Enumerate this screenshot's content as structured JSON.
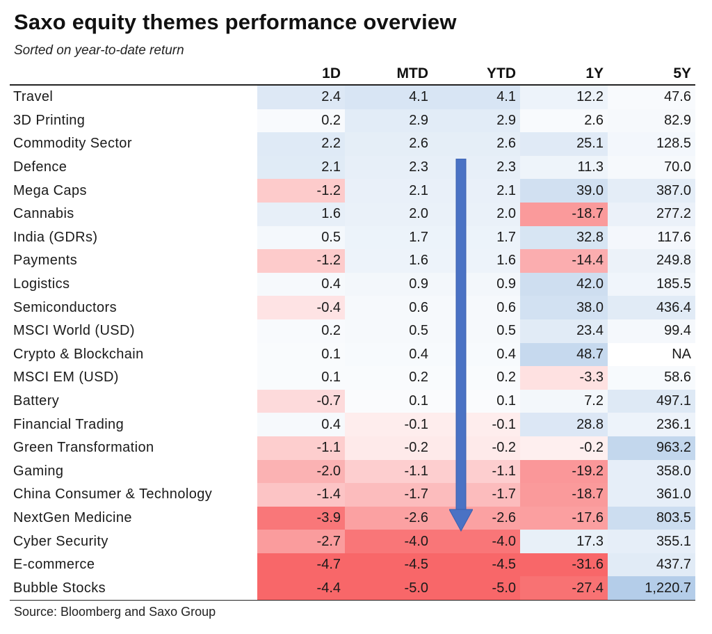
{
  "chart_data": {
    "type": "table",
    "title": "Saxo equity themes performance overview",
    "subtitle": "Sorted on year-to-date return",
    "source": "Source: Bloomberg and Saxo Group",
    "columns": [
      "",
      "1D",
      "MTD",
      "YTD",
      "1Y",
      "5Y"
    ],
    "rows": [
      {
        "name": "Travel",
        "values": [
          "2.4",
          "4.1",
          "4.1",
          "12.2",
          "47.6"
        ]
      },
      {
        "name": "3D Printing",
        "values": [
          "0.2",
          "2.9",
          "2.9",
          "2.6",
          "82.9"
        ]
      },
      {
        "name": "Commodity Sector",
        "values": [
          "2.2",
          "2.6",
          "2.6",
          "25.1",
          "128.5"
        ]
      },
      {
        "name": "Defence",
        "values": [
          "2.1",
          "2.3",
          "2.3",
          "11.3",
          "70.0"
        ]
      },
      {
        "name": "Mega Caps",
        "values": [
          "-1.2",
          "2.1",
          "2.1",
          "39.0",
          "387.0"
        ]
      },
      {
        "name": "Cannabis",
        "values": [
          "1.6",
          "2.0",
          "2.0",
          "-18.7",
          "277.2"
        ]
      },
      {
        "name": "India (GDRs)",
        "values": [
          "0.5",
          "1.7",
          "1.7",
          "32.8",
          "117.6"
        ]
      },
      {
        "name": "Payments",
        "values": [
          "-1.2",
          "1.6",
          "1.6",
          "-14.4",
          "249.8"
        ]
      },
      {
        "name": "Logistics",
        "values": [
          "0.4",
          "0.9",
          "0.9",
          "42.0",
          "185.5"
        ]
      },
      {
        "name": "Semiconductors",
        "values": [
          "-0.4",
          "0.6",
          "0.6",
          "38.0",
          "436.4"
        ]
      },
      {
        "name": "MSCI World (USD)",
        "values": [
          "0.2",
          "0.5",
          "0.5",
          "23.4",
          "99.4"
        ]
      },
      {
        "name": "Crypto & Blockchain",
        "values": [
          "0.1",
          "0.4",
          "0.4",
          "48.7",
          "NA"
        ]
      },
      {
        "name": "MSCI EM (USD)",
        "values": [
          "0.1",
          "0.2",
          "0.2",
          "-3.3",
          "58.6"
        ]
      },
      {
        "name": "Battery",
        "values": [
          "-0.7",
          "0.1",
          "0.1",
          "7.2",
          "497.1"
        ]
      },
      {
        "name": "Financial Trading",
        "values": [
          "0.4",
          "-0.1",
          "-0.1",
          "28.8",
          "236.1"
        ]
      },
      {
        "name": "Green Transformation",
        "values": [
          "-1.1",
          "-0.2",
          "-0.2",
          "-0.2",
          "963.2"
        ]
      },
      {
        "name": "Gaming",
        "values": [
          "-2.0",
          "-1.1",
          "-1.1",
          "-19.2",
          "358.0"
        ]
      },
      {
        "name": "China Consumer & Technology",
        "values": [
          "-1.4",
          "-1.7",
          "-1.7",
          "-18.7",
          "361.0"
        ]
      },
      {
        "name": "NextGen Medicine",
        "values": [
          "-3.9",
          "-2.6",
          "-2.6",
          "-17.6",
          "803.5"
        ]
      },
      {
        "name": "Cyber Security",
        "values": [
          "-2.7",
          "-4.0",
          "-4.0",
          "17.3",
          "355.1"
        ]
      },
      {
        "name": "E-commerce",
        "values": [
          "-4.7",
          "-4.5",
          "-4.5",
          "-31.6",
          "437.7"
        ]
      },
      {
        "name": "Bubble Stocks",
        "values": [
          "-4.4",
          "-5.0",
          "-5.0",
          "-27.4",
          "1,220.7"
        ]
      }
    ],
    "sort_arrow": "down",
    "colors": {
      "positive": "#b4cde9",
      "negative": "#f86769",
      "neutral": "#ffffff",
      "arrow": "#4a72c4"
    }
  }
}
